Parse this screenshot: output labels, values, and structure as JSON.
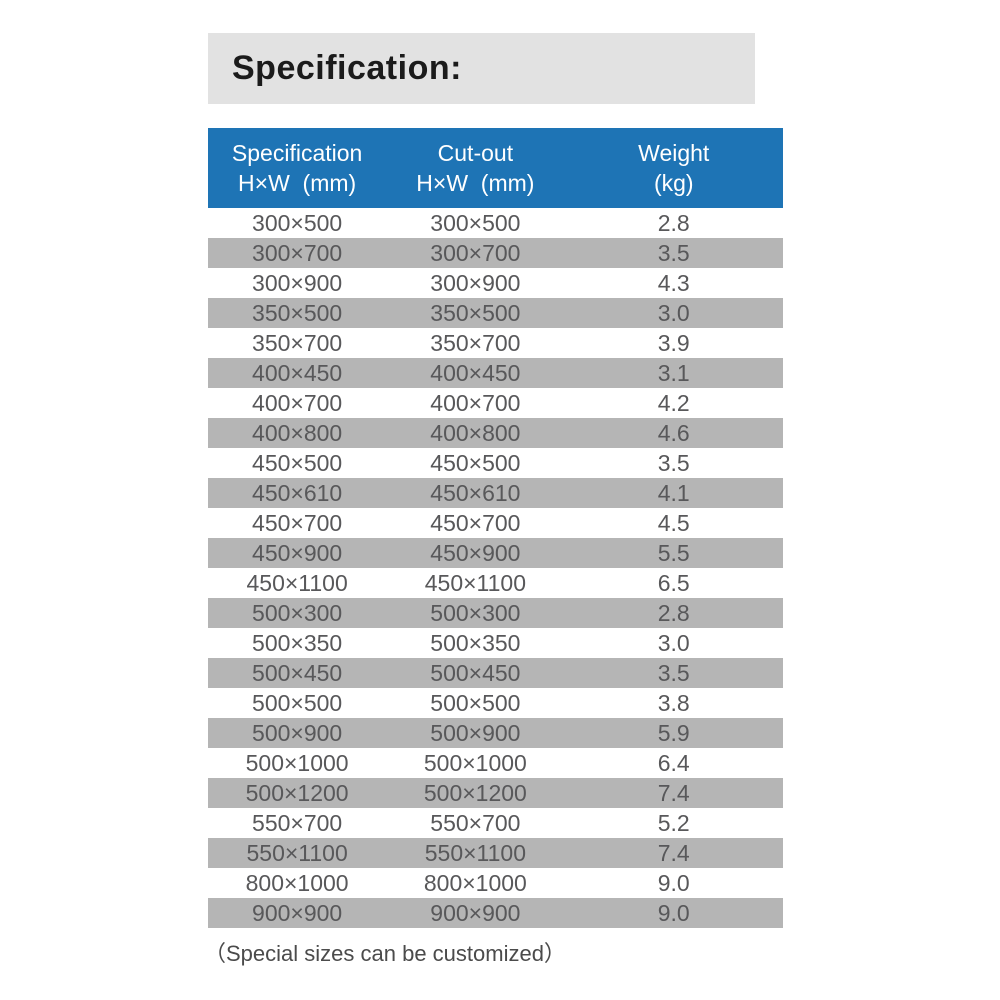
{
  "colors": {
    "header_bg": "#1e74b5",
    "header_text": "#ffffff",
    "stripe": "#b5b5b5",
    "title_bg": "#e2e2e2",
    "title_text": "#1b1b1b",
    "body_text": "#58585a",
    "footnote_text": "#4b4b4b"
  },
  "title": {
    "label": "Specification:"
  },
  "table": {
    "columns": [
      {
        "id": "spec",
        "lines": [
          "Specification",
          "H×W  (mm)"
        ]
      },
      {
        "id": "cutout",
        "lines": [
          "Cut-out",
          "H×W  (mm)"
        ]
      },
      {
        "id": "weight",
        "lines": [
          "Weight",
          "(kg)"
        ]
      }
    ],
    "rows": [
      {
        "spec": "300×500",
        "cutout": "300×500",
        "weight": "2.8"
      },
      {
        "spec": "300×700",
        "cutout": "300×700",
        "weight": "3.5"
      },
      {
        "spec": "300×900",
        "cutout": "300×900",
        "weight": "4.3"
      },
      {
        "spec": "350×500",
        "cutout": "350×500",
        "weight": "3.0"
      },
      {
        "spec": "350×700",
        "cutout": "350×700",
        "weight": "3.9"
      },
      {
        "spec": "400×450",
        "cutout": "400×450",
        "weight": "3.1"
      },
      {
        "spec": "400×700",
        "cutout": "400×700",
        "weight": "4.2"
      },
      {
        "spec": "400×800",
        "cutout": "400×800",
        "weight": "4.6"
      },
      {
        "spec": "450×500",
        "cutout": "450×500",
        "weight": "3.5"
      },
      {
        "spec": "450×610",
        "cutout": "450×610",
        "weight": "4.1"
      },
      {
        "spec": "450×700",
        "cutout": "450×700",
        "weight": "4.5"
      },
      {
        "spec": "450×900",
        "cutout": "450×900",
        "weight": "5.5"
      },
      {
        "spec": "450×1100",
        "cutout": "450×1100",
        "weight": "6.5"
      },
      {
        "spec": "500×300",
        "cutout": "500×300",
        "weight": "2.8"
      },
      {
        "spec": "500×350",
        "cutout": "500×350",
        "weight": "3.0"
      },
      {
        "spec": "500×450",
        "cutout": "500×450",
        "weight": "3.5"
      },
      {
        "spec": "500×500",
        "cutout": "500×500",
        "weight": "3.8"
      },
      {
        "spec": "500×900",
        "cutout": "500×900",
        "weight": "5.9"
      },
      {
        "spec": "500×1000",
        "cutout": "500×1000",
        "weight": "6.4"
      },
      {
        "spec": "500×1200",
        "cutout": "500×1200",
        "weight": "7.4"
      },
      {
        "spec": "550×700",
        "cutout": "550×700",
        "weight": "5.2"
      },
      {
        "spec": "550×1100",
        "cutout": "550×1100",
        "weight": "7.4"
      },
      {
        "spec": "800×1000",
        "cutout": "800×1000",
        "weight": "9.0"
      },
      {
        "spec": "900×900",
        "cutout": "900×900",
        "weight": "9.0"
      }
    ]
  },
  "footnote": {
    "label": "（Special sizes can be customized）"
  }
}
